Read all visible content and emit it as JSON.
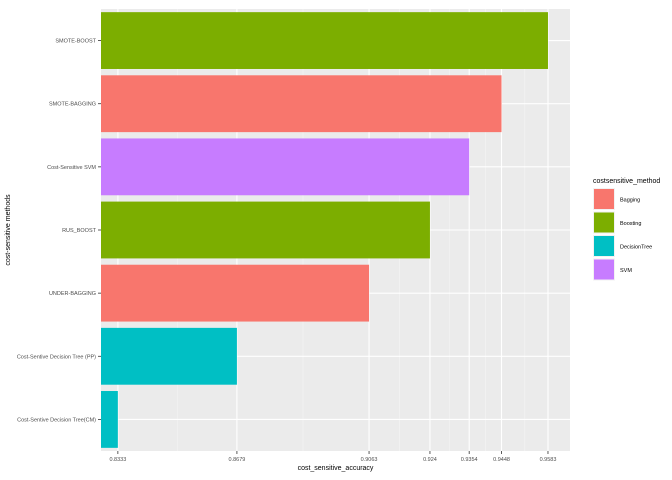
{
  "chart_data": {
    "type": "bar",
    "orientation": "horizontal",
    "xlabel": "cost_sensitive_accuracy",
    "ylabel": "cost-sensitive methods",
    "xlim": [
      0.8284,
      0.9647
    ],
    "x_ticks": [
      "0.8333",
      "0.8679",
      "0.9063",
      "0.924",
      "0.9354",
      "0.9448",
      "0.9583"
    ],
    "x_tick_values": [
      0.8333,
      0.8679,
      0.9063,
      0.924,
      0.9354,
      0.9448,
      0.9583
    ],
    "grid": true,
    "legend": {
      "title": "costsensitive_method",
      "position": "right",
      "entries": [
        {
          "name": "Bagging",
          "color": "#F8766D"
        },
        {
          "name": "Boosting",
          "color": "#7CAE00"
        },
        {
          "name": "DecisionTree",
          "color": "#00BFC4"
        },
        {
          "name": "SVM",
          "color": "#C77CFF"
        }
      ]
    },
    "categories": [
      "SMOTE-BOOST",
      "SMOTE-BAGGING",
      "Cost-Sensitive SVM",
      "RUS_BOOST",
      "UNDER-BAGGING",
      "Cost-Sentive Decision Tree (PP)",
      "Cost-Sentive Decision Tree(CM)"
    ],
    "values": [
      0.9583,
      0.9448,
      0.9354,
      0.924,
      0.9063,
      0.8679,
      0.8333
    ],
    "groups": [
      "Boosting",
      "Bagging",
      "SVM",
      "Boosting",
      "Bagging",
      "DecisionTree",
      "DecisionTree"
    ]
  }
}
